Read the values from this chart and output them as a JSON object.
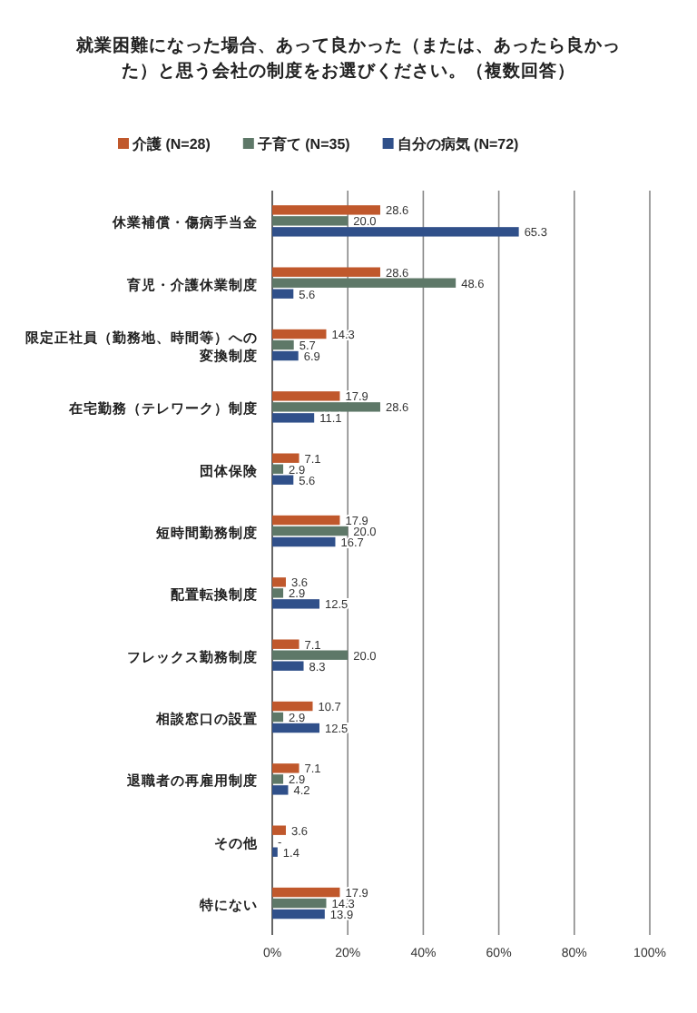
{
  "chart_data": {
    "type": "bar",
    "orientation": "horizontal",
    "title": "就業困難になった場合、あって良かった（または、あったら良かった）と思う会社の制度をお選びください。（複数回答）",
    "categories": [
      "休業補償・傷病手当金",
      "育児・介護休業制度",
      "限定正社員（勤務地、時間等）への変換制度",
      "在宅勤務（テレワーク）制度",
      "団体保険",
      "短時間勤務制度",
      "配置転換制度",
      "フレックス勤務制度",
      "相談窓口の設置",
      "退職者の再雇用制度",
      "その他",
      "特にない"
    ],
    "series": [
      {
        "name": "介護 (N=28)",
        "color": "#c0582c",
        "values": [
          28.6,
          28.6,
          14.3,
          17.9,
          7.1,
          17.9,
          3.6,
          7.1,
          10.7,
          7.1,
          3.6,
          17.9
        ],
        "value_labels": [
          "28.6",
          "28.6",
          "14.3",
          "17.9",
          "7.1",
          "17.9",
          "3.6",
          "7.1",
          "10.7",
          "7.1",
          "3.6",
          "17.9"
        ]
      },
      {
        "name": "子育て (N=35)",
        "color": "#5e7868",
        "values": [
          20.0,
          48.6,
          5.7,
          28.6,
          2.9,
          20.0,
          2.9,
          20.0,
          2.9,
          2.9,
          0,
          14.3
        ],
        "value_labels": [
          "20.0",
          "48.6",
          "5.7",
          "28.6",
          "2.9",
          "20.0",
          "2.9",
          "20.0",
          "2.9",
          "2.9",
          "-",
          "14.3"
        ]
      },
      {
        "name": "自分の病気 (N=72)",
        "color": "#30508a",
        "values": [
          65.3,
          5.6,
          6.9,
          11.1,
          5.6,
          16.7,
          12.5,
          8.3,
          12.5,
          4.2,
          1.4,
          13.9
        ],
        "value_labels": [
          "65.3",
          "5.6",
          "6.9",
          "11.1",
          "5.6",
          "16.7",
          "12.5",
          "8.3",
          "12.5",
          "4.2",
          "1.4",
          "13.9"
        ]
      }
    ],
    "xlim": [
      0,
      100
    ],
    "xticks": [
      {
        "value": 0,
        "label": "0%"
      },
      {
        "value": 20,
        "label": "20%"
      },
      {
        "value": 40,
        "label": "40%"
      },
      {
        "value": 60,
        "label": "60%"
      },
      {
        "value": 80,
        "label": "80%"
      },
      {
        "value": 100,
        "label": "100%"
      }
    ],
    "grid": "x",
    "legend": "top"
  }
}
